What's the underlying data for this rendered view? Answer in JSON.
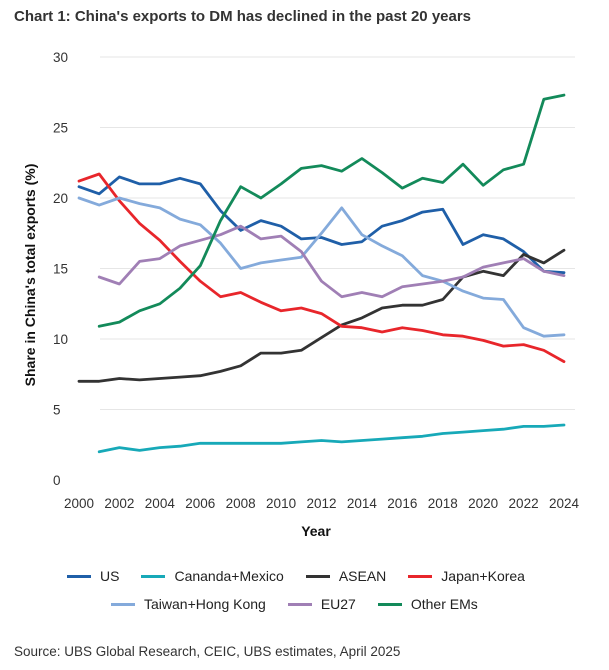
{
  "header": {
    "title": "Chart 1: China's exports to DM has declined in the past 20 years"
  },
  "footer": {
    "source": "Source: UBS Global Research, CEIC, UBS estimates, April 2025"
  },
  "chart_data": {
    "type": "line",
    "title": "Chart 1: China's exports to DM has declined in the past 20 years",
    "xlabel": "Year",
    "ylabel": "Share in China's total exports (%)",
    "xlim": [
      2000,
      2024
    ],
    "ylim": [
      0,
      30
    ],
    "x_ticks": [
      "2000",
      "2002",
      "2004",
      "2006",
      "2008",
      "2010",
      "2012",
      "2014",
      "2016",
      "2018",
      "2020",
      "2022",
      "2024"
    ],
    "y_ticks": [
      "0",
      "5",
      "10",
      "15",
      "20",
      "25",
      "30"
    ],
    "grid": "horizontal",
    "legend_position": "bottom",
    "series": [
      {
        "name": "US",
        "color": "#1f5fa8",
        "x": [
          2000,
          2001,
          2002,
          2003,
          2004,
          2005,
          2006,
          2007,
          2008,
          2009,
          2010,
          2011,
          2012,
          2013,
          2014,
          2015,
          2016,
          2017,
          2018,
          2019,
          2020,
          2021,
          2022,
          2023,
          2024
        ],
        "values": [
          20.8,
          20.3,
          21.5,
          21.0,
          21.0,
          21.4,
          21.0,
          19.1,
          17.7,
          18.4,
          18.0,
          17.1,
          17.2,
          16.7,
          16.9,
          18.0,
          18.4,
          19.0,
          19.2,
          16.7,
          17.4,
          17.1,
          16.2,
          14.8,
          14.7
        ]
      },
      {
        "name": "Cananda+Mexico",
        "color": "#17a9b8",
        "x": [
          2001,
          2002,
          2003,
          2004,
          2005,
          2006,
          2007,
          2008,
          2009,
          2010,
          2011,
          2012,
          2013,
          2014,
          2015,
          2016,
          2017,
          2018,
          2019,
          2020,
          2021,
          2022,
          2023,
          2024
        ],
        "values": [
          2.0,
          2.3,
          2.1,
          2.3,
          2.4,
          2.6,
          2.6,
          2.6,
          2.6,
          2.6,
          2.7,
          2.8,
          2.7,
          2.8,
          2.9,
          3.0,
          3.1,
          3.3,
          3.4,
          3.5,
          3.6,
          3.8,
          3.8,
          3.9
        ]
      },
      {
        "name": "ASEAN",
        "color": "#333333",
        "x": [
          2000,
          2001,
          2002,
          2003,
          2004,
          2005,
          2006,
          2007,
          2008,
          2009,
          2010,
          2011,
          2012,
          2013,
          2014,
          2015,
          2016,
          2017,
          2018,
          2019,
          2020,
          2021,
          2022,
          2023,
          2024
        ],
        "values": [
          7.0,
          7.0,
          7.2,
          7.1,
          7.2,
          7.3,
          7.4,
          7.7,
          8.1,
          9.0,
          9.0,
          9.2,
          10.1,
          11.0,
          11.5,
          12.2,
          12.4,
          12.4,
          12.8,
          14.4,
          14.8,
          14.5,
          16.0,
          15.4,
          16.3
        ]
      },
      {
        "name": "Japan+Korea",
        "color": "#e8262b",
        "x": [
          2000,
          2001,
          2002,
          2003,
          2004,
          2005,
          2006,
          2007,
          2008,
          2009,
          2010,
          2011,
          2012,
          2013,
          2014,
          2015,
          2016,
          2017,
          2018,
          2019,
          2020,
          2021,
          2022,
          2023,
          2024
        ],
        "values": [
          21.2,
          21.7,
          19.8,
          18.2,
          17.0,
          15.5,
          14.1,
          13.0,
          13.3,
          12.6,
          12.0,
          12.2,
          11.8,
          10.9,
          10.8,
          10.5,
          10.8,
          10.6,
          10.3,
          10.2,
          9.9,
          9.5,
          9.6,
          9.2,
          8.4
        ]
      },
      {
        "name": "Taiwan+Hong Kong",
        "color": "#84aadb",
        "x": [
          2000,
          2001,
          2002,
          2003,
          2004,
          2005,
          2006,
          2007,
          2008,
          2009,
          2010,
          2011,
          2012,
          2013,
          2014,
          2015,
          2016,
          2017,
          2018,
          2019,
          2020,
          2021,
          2022,
          2023,
          2024
        ],
        "values": [
          20.0,
          19.5,
          20.0,
          19.6,
          19.3,
          18.5,
          18.1,
          16.8,
          15.0,
          15.4,
          15.6,
          15.8,
          17.5,
          19.3,
          17.4,
          16.6,
          15.9,
          14.5,
          14.1,
          13.4,
          12.9,
          12.8,
          10.8,
          10.2,
          10.3
        ]
      },
      {
        "name": "EU27",
        "color": "#a07fb5",
        "x": [
          2001,
          2002,
          2003,
          2004,
          2005,
          2006,
          2007,
          2008,
          2009,
          2010,
          2011,
          2012,
          2013,
          2014,
          2015,
          2016,
          2017,
          2018,
          2019,
          2020,
          2021,
          2022,
          2023,
          2024
        ],
        "values": [
          14.4,
          13.9,
          15.5,
          15.7,
          16.6,
          17.0,
          17.4,
          18.0,
          17.1,
          17.3,
          16.2,
          14.1,
          13.0,
          13.3,
          13.0,
          13.7,
          13.9,
          14.1,
          14.4,
          15.1,
          15.4,
          15.7,
          14.8,
          14.5
        ]
      },
      {
        "name": "Other EMs",
        "color": "#138a5a",
        "x": [
          2001,
          2002,
          2003,
          2004,
          2005,
          2006,
          2007,
          2008,
          2009,
          2010,
          2011,
          2012,
          2013,
          2014,
          2015,
          2016,
          2017,
          2018,
          2019,
          2020,
          2021,
          2022,
          2023,
          2024
        ],
        "values": [
          10.9,
          11.2,
          12.0,
          12.5,
          13.6,
          15.2,
          18.4,
          20.8,
          20.0,
          21.0,
          22.1,
          22.3,
          21.9,
          22.8,
          21.8,
          20.7,
          21.4,
          21.1,
          22.4,
          20.9,
          22.0,
          22.4,
          27.0,
          27.3
        ]
      }
    ]
  }
}
